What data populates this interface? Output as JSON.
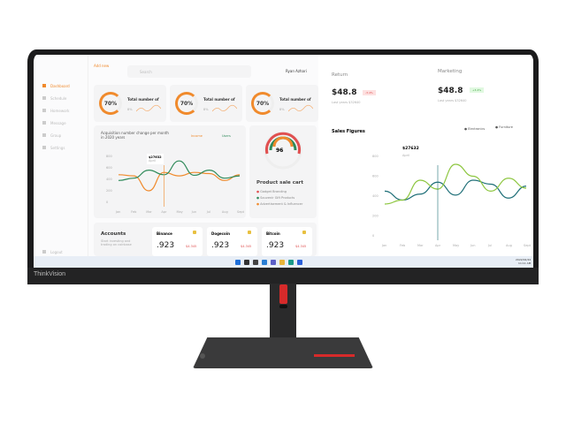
{
  "monitor": {
    "brand": "ThinkVision"
  },
  "sidebar": {
    "items": [
      {
        "label": "Dashboard",
        "active": true
      },
      {
        "label": "Schedule"
      },
      {
        "label": "Homework"
      },
      {
        "label": "Message"
      },
      {
        "label": "Group"
      },
      {
        "label": "Settings"
      }
    ],
    "logout": "Logout"
  },
  "header": {
    "add_new": "Add new",
    "search_placeholder": "Search",
    "user": "Ryan Azhari"
  },
  "stat_cards": [
    {
      "percent": "70%",
      "title": "Total number of",
      "sub": "8%"
    },
    {
      "percent": "70%",
      "title": "Total number of",
      "sub": "8%"
    },
    {
      "percent": "70%",
      "title": "Total number of",
      "sub": "8%"
    }
  ],
  "acquisition": {
    "title": "Acquisition number change per month in 2020 years",
    "legend": [
      "Income",
      "Users"
    ],
    "tooltip_value": "$27632",
    "tooltip_label": "April",
    "y_ticks": [
      "800",
      "600",
      "400",
      "200",
      "0"
    ],
    "x_ticks": [
      "Jan",
      "Feb",
      "Mar",
      "Apr",
      "May",
      "Jun",
      "Jul",
      "Aug",
      "Sept"
    ]
  },
  "product": {
    "value": "96",
    "label": "Total",
    "title": "Product sale cart",
    "items": [
      {
        "label": "Gadget Branding",
        "color": "#e05050"
      },
      {
        "label": "Souvenir Gift Products",
        "color": "#2f8a5a"
      },
      {
        "label": "Advertisement & Influencer",
        "color": "#f08a2c"
      }
    ]
  },
  "accounts": {
    "title": "Accounts",
    "desc": "Start investing and trading on coinbase",
    "coins": [
      {
        "name": "Binance",
        "value": ".923",
        "change": "$4.345"
      },
      {
        "name": "Dogecoin",
        "value": ".923",
        "change": "$4.345"
      },
      {
        "name": "Bitcoin",
        "value": ".923",
        "change": "$4.345"
      }
    ]
  },
  "return": {
    "title": "Return",
    "value": "$48.8",
    "badge": "-3.4%",
    "sub": "Last years $32640"
  },
  "marketing": {
    "title": "Marketing",
    "value": "$48.8",
    "badge": "+3.4%",
    "sub": "Last years $32640"
  },
  "chart_data": {
    "type": "line",
    "title": "Sales Figures",
    "categories": [
      "Jan",
      "Feb",
      "Mar",
      "Apr",
      "May",
      "Jun",
      "Jul",
      "Aug",
      "Sept"
    ],
    "y_ticks": [
      "800",
      "600",
      "400",
      "200",
      "0"
    ],
    "ylim": [
      0,
      800
    ],
    "legend": "top-right",
    "series": [
      {
        "name": "Electronics",
        "color": "#1f6f78",
        "values": [
          450,
          360,
          420,
          540,
          410,
          560,
          520,
          380,
          500
        ]
      },
      {
        "name": "Furniture",
        "color": "#8dc63f",
        "values": [
          320,
          360,
          560,
          470,
          720,
          600,
          450,
          580,
          480
        ]
      }
    ],
    "tooltip": {
      "value": "$27632",
      "label": "April"
    }
  },
  "taskbar": {
    "time": "11:11 AM",
    "date": "2022/02/22"
  }
}
